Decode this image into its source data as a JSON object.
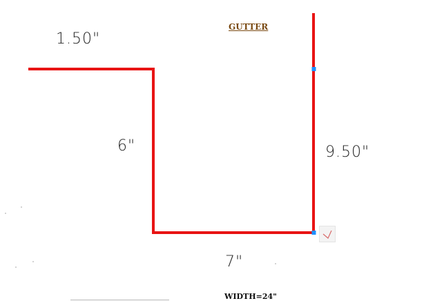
{
  "diagram": {
    "title": "GUTTER",
    "footer": "WIDTH=24\"",
    "dimensions": {
      "top_flange": "1.50\"",
      "inner_side": "6\"",
      "bottom": "7\"",
      "back_side": "9.50\""
    },
    "colors": {
      "profile_line": "#e81414",
      "grip_handle": "#1e90ff",
      "title_text": "#7a4a12",
      "footer_line": "#b8b8b8"
    },
    "icons": {
      "corner_marker": "corner-check-icon"
    }
  }
}
